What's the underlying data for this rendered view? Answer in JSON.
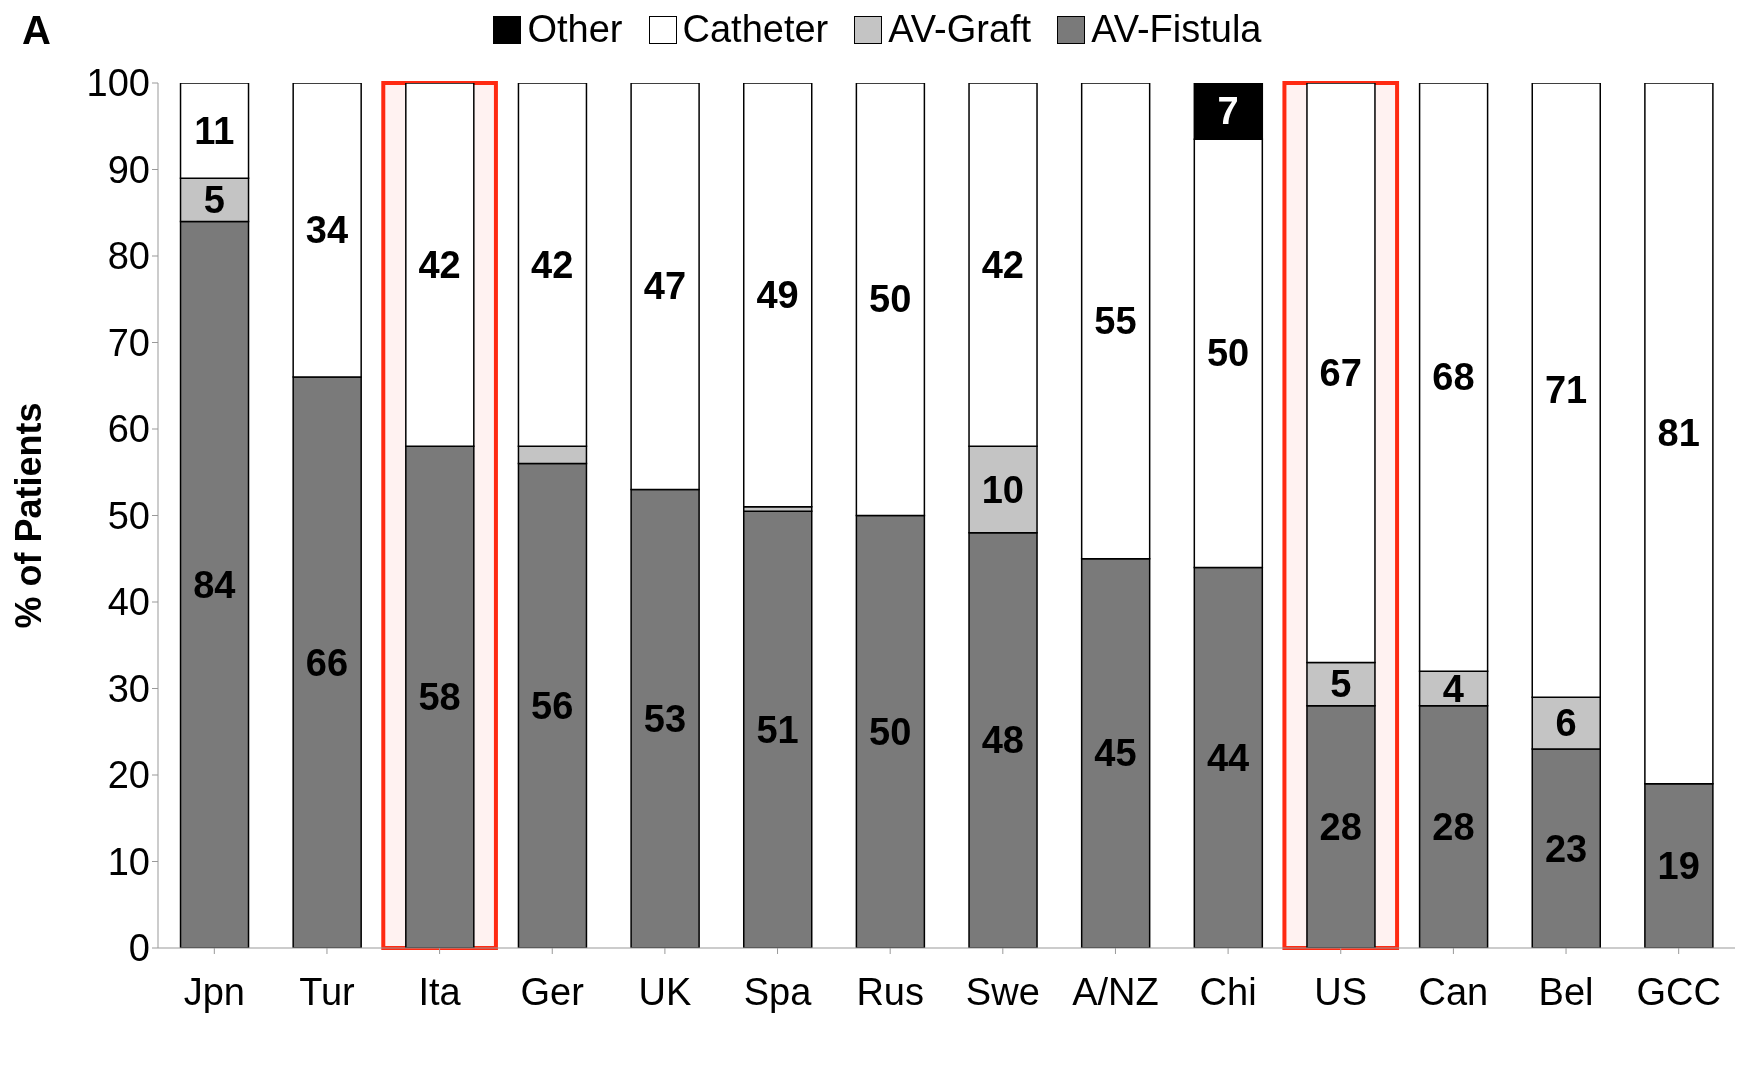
{
  "chart_data": {
    "type": "bar",
    "stacked": true,
    "ylabel": "% of Patients",
    "annotations": [
      "A"
    ],
    "categories": [
      "Jpn",
      "Tur",
      "Ita",
      "Ger",
      "UK",
      "Spa",
      "Rus",
      "Swe",
      "A/NZ",
      "Chi",
      "US",
      "Can",
      "Bel",
      "GCC"
    ],
    "series": [
      {
        "name": "AV-Fistula",
        "color": "#7a7a7a",
        "values": [
          84,
          66,
          58,
          56,
          53,
          50.5,
          50,
          48,
          45,
          44,
          28,
          28,
          23,
          19
        ],
        "value_labels": [
          "84",
          "66",
          "58",
          "56",
          "53",
          "51",
          "50",
          "48",
          "45",
          "44",
          "28",
          "28",
          "23",
          "19"
        ]
      },
      {
        "name": "AV-Graft",
        "color": "#c4c4c4",
        "values": [
          5,
          0,
          0,
          2,
          0,
          0.5,
          0,
          10,
          0,
          0,
          5,
          4,
          6,
          0
        ],
        "value_labels": [
          "5",
          null,
          null,
          null,
          null,
          null,
          null,
          "10",
          null,
          null,
          "5",
          "4",
          "6",
          null
        ]
      },
      {
        "name": "Catheter",
        "color": "#ffffff",
        "values": [
          11,
          34,
          42,
          42,
          47,
          49,
          50,
          42,
          55,
          49.5,
          67,
          68,
          71,
          81
        ],
        "value_labels": [
          "11",
          "34",
          "42",
          "42",
          "47",
          "49",
          "50",
          "42",
          "55",
          "50",
          "67",
          "68",
          "71",
          "81"
        ]
      },
      {
        "name": "Other",
        "color": "#000000",
        "values": [
          0,
          0,
          0,
          0,
          0,
          0,
          0,
          0,
          0,
          6.5,
          0,
          0,
          0,
          0
        ],
        "value_labels": [
          null,
          null,
          null,
          null,
          null,
          null,
          null,
          null,
          null,
          "7",
          null,
          null,
          null,
          null
        ]
      }
    ],
    "ylim": [
      0,
      100
    ],
    "yticks": [
      0,
      10,
      20,
      30,
      40,
      50,
      60,
      70,
      80,
      90,
      100
    ],
    "grid": false,
    "legend": "top",
    "bands": [
      {
        "axis": "x",
        "from": "Ita",
        "to": "Ita",
        "color": "#ff2a12"
      },
      {
        "axis": "x",
        "from": "US",
        "to": "US",
        "color": "#ff2a12"
      }
    ]
  }
}
